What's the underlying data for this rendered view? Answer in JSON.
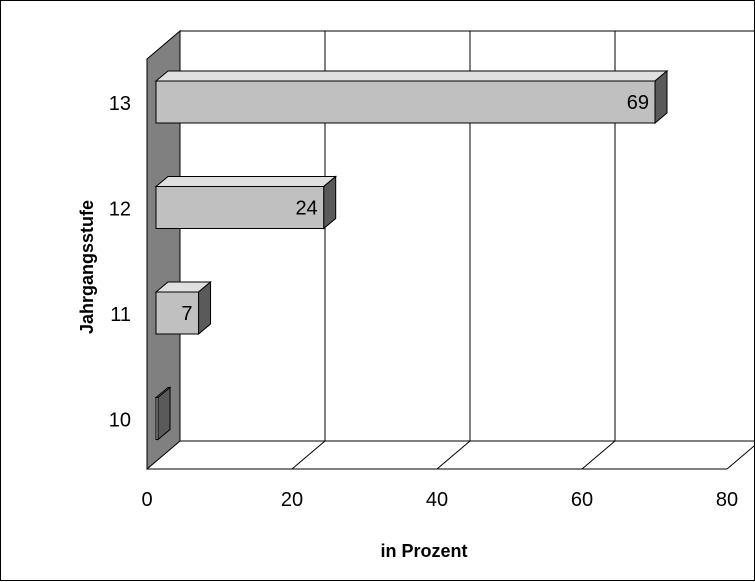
{
  "chart_data": {
    "type": "bar",
    "orientation": "horizontal",
    "style": "3d",
    "categories": [
      "10",
      "11",
      "12",
      "13"
    ],
    "values": [
      0,
      7,
      24,
      69
    ],
    "data_labels": [
      "",
      "7",
      "24",
      "69"
    ],
    "xlabel": "in Prozent",
    "ylabel": "Jahrgangsstufe",
    "xlim": [
      0,
      80
    ],
    "xticks": [
      "0",
      "20",
      "40",
      "60",
      "80"
    ],
    "grid": true,
    "legend": "none",
    "colors": {
      "bar_front": "#c0c0c0",
      "bar_top": "#e0e0e0",
      "bar_side": "#5a5a5a",
      "side_wall": "#808080",
      "gridline": "#000000"
    }
  }
}
